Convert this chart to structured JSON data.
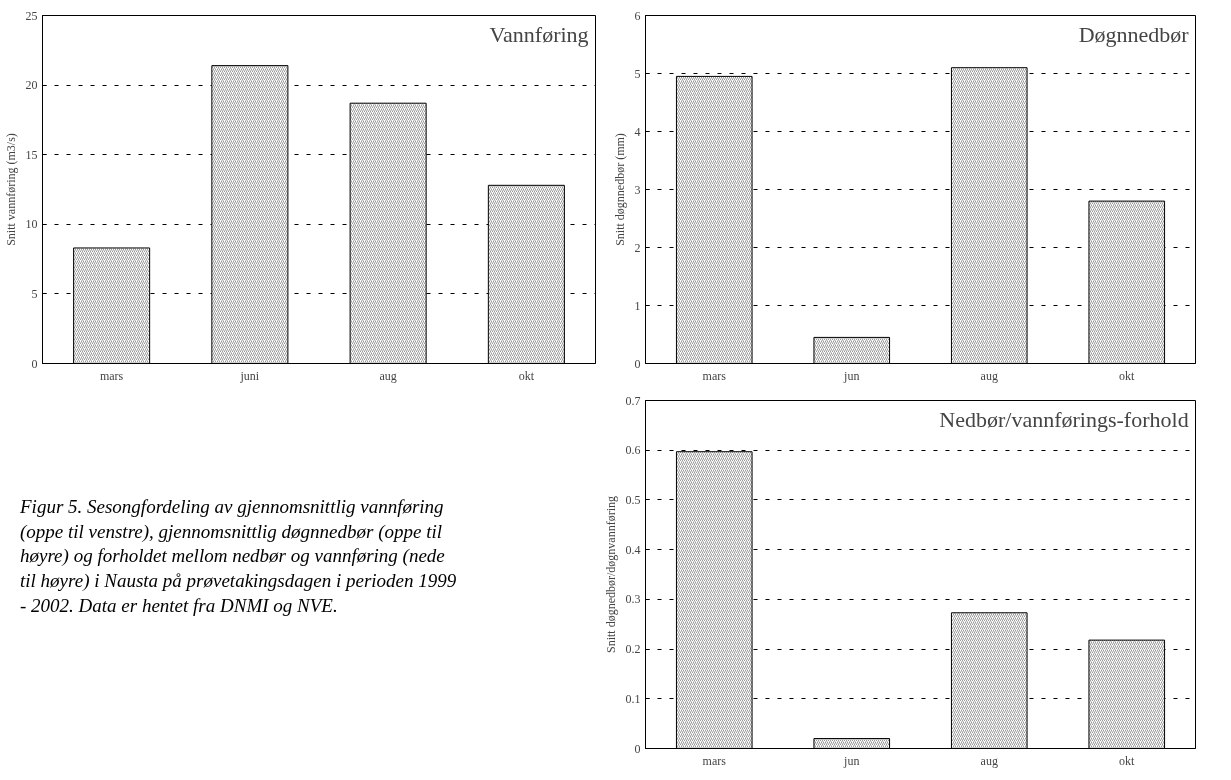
{
  "chart_data": [
    {
      "type": "bar",
      "title": "Vannføring",
      "ylabel": "Snitt vannføring (m3/s)",
      "categories": [
        "mars",
        "juni",
        "aug",
        "okt"
      ],
      "values": [
        8.3,
        21.4,
        18.7,
        12.8
      ],
      "color": "#ffffff",
      "ylim": [
        0,
        25
      ],
      "yticks": [
        0,
        5,
        10,
        15,
        20,
        25
      ],
      "grid": "y"
    },
    {
      "type": "bar",
      "title": "Døgnnedbør",
      "ylabel": "Snitt døgnnedbør (mm)",
      "categories": [
        "mars",
        "jun",
        "aug",
        "okt"
      ],
      "values": [
        4.95,
        0.45,
        5.1,
        2.8
      ],
      "color": "#ffffff",
      "ylim": [
        0,
        6
      ],
      "yticks": [
        0,
        1,
        2,
        3,
        4,
        5,
        6
      ],
      "grid": "y"
    },
    {
      "type": "bar",
      "title": "Nedbør/vannførings-forhold",
      "ylabel": "Snitt døgnedbør/døgnvannføring",
      "categories": [
        "mars",
        "jun",
        "aug",
        "okt"
      ],
      "values": [
        0.597,
        0.02,
        0.273,
        0.218
      ],
      "color": "#ffffff",
      "ylim": [
        0,
        0.7
      ],
      "yticks": [
        0,
        0.1,
        0.2,
        0.3,
        0.4,
        0.5,
        0.6,
        0.7
      ],
      "grid": "y"
    },
    {
      "type": "other",
      "annotations": [
        "Figur 5. Sesongfordeling av gjennomsnittlig vannføring (oppe til venstre), gjennomsnittlig døgnnedbør (oppe til høyre) og forholdet mellom nedbør og vannføring (nede til høyre) i Nausta på prøvetakingsdagen i perioden 1999 - 2002. Data er hentet fra DNMI og NVE."
      ]
    }
  ]
}
